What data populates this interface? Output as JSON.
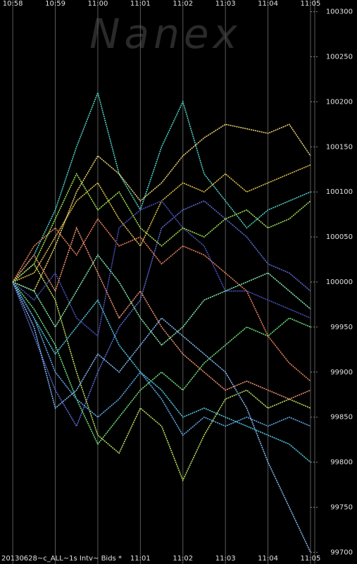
{
  "chart_data": {
    "type": "line",
    "watermark": "Nanex",
    "footer": "20130628~c_ALL~1s Intv~ Bids *",
    "x": [
      0,
      0.5,
      1,
      1.5,
      2,
      2.5,
      3,
      3.5,
      4,
      4.5,
      5,
      5.5,
      6,
      6.5,
      7
    ],
    "xlim": [
      -0.3,
      7.1
    ],
    "xticks": [
      {
        "value": 0,
        "label": "10:58"
      },
      {
        "value": 1,
        "label": "10:59"
      },
      {
        "value": 2,
        "label": "11:00"
      },
      {
        "value": 3,
        "label": "11:01"
      },
      {
        "value": 4,
        "label": "11:02"
      },
      {
        "value": 5,
        "label": "11:03"
      },
      {
        "value": 6,
        "label": "11:04"
      },
      {
        "value": 7,
        "label": "11:05"
      }
    ],
    "ylim": [
      99687,
      100313
    ],
    "yticks": [
      99700,
      99750,
      99800,
      99850,
      99900,
      99950,
      100000,
      100050,
      100100,
      100150,
      100200,
      100250,
      100300
    ],
    "grid": "x",
    "series": [
      {
        "color": "#4fd1c5",
        "values": [
          100000,
          100030,
          100080,
          100150,
          100210,
          100120,
          100080,
          100150,
          100200,
          100120,
          100090,
          100060,
          100080,
          100090,
          100100
        ]
      },
      {
        "color": "#e8d070",
        "values": [
          100000,
          99990,
          100040,
          100100,
          100140,
          100120,
          100090,
          100110,
          100140,
          100160,
          100175,
          100170,
          100165,
          100175,
          100140
        ]
      },
      {
        "color": "#e8805a",
        "values": [
          100000,
          100040,
          100060,
          100030,
          100070,
          100040,
          100050,
          100020,
          100040,
          100030,
          100010,
          99990,
          99940,
          99910,
          99890
        ]
      },
      {
        "color": "#5a6ad0",
        "values": [
          100000,
          99940,
          99880,
          99840,
          99900,
          99950,
          99980,
          100060,
          100080,
          100090,
          100070,
          100050,
          100020,
          100010,
          99990
        ]
      },
      {
        "color": "#6ee07a",
        "values": [
          100000,
          99970,
          99930,
          99870,
          99820,
          99850,
          99880,
          99900,
          99880,
          99910,
          99930,
          99950,
          99940,
          99960,
          99950
        ]
      },
      {
        "color": "#b8e060",
        "values": [
          100000,
          100020,
          99980,
          99900,
          99830,
          99810,
          99860,
          99840,
          99780,
          99830,
          99870,
          99880,
          99860,
          99870,
          99860
        ]
      },
      {
        "color": "#50c8e0",
        "values": [
          100000,
          99960,
          99920,
          99950,
          99980,
          99930,
          99900,
          99880,
          99850,
          99860,
          99850,
          99840,
          99830,
          99820,
          99800
        ]
      },
      {
        "color": "#e0c050",
        "values": [
          100000,
          100010,
          100050,
          100090,
          100110,
          100070,
          100040,
          100090,
          100110,
          100100,
          100120,
          100100,
          100110,
          100120,
          100130
        ]
      },
      {
        "color": "#4a50b8",
        "values": [
          100000,
          99980,
          100010,
          99960,
          99940,
          100060,
          100080,
          100090,
          100060,
          100040,
          99990,
          99990,
          99980,
          99970,
          99960
        ]
      },
      {
        "color": "#e89070",
        "values": [
          100000,
          100030,
          99990,
          100060,
          100010,
          99960,
          99990,
          99950,
          99920,
          99900,
          99880,
          99890,
          99880,
          99870,
          99880
        ]
      },
      {
        "color": "#80e8b0",
        "values": [
          100000,
          99990,
          99950,
          99990,
          100030,
          100000,
          99960,
          99930,
          99950,
          99980,
          99990,
          100000,
          100010,
          99990,
          99970
        ]
      },
      {
        "color": "#60a8e8",
        "values": [
          100000,
          99960,
          99900,
          99870,
          99850,
          99870,
          99900,
          99870,
          99830,
          99850,
          99840,
          99850,
          99840,
          99850,
          99840
        ]
      },
      {
        "color": "#a0e050",
        "values": [
          100000,
          100020,
          100070,
          100120,
          100080,
          100100,
          100060,
          100040,
          100060,
          100050,
          100070,
          100080,
          100060,
          100070,
          100090
        ]
      },
      {
        "color": "#80b8f0",
        "values": [
          100000,
          99950,
          99860,
          99880,
          99920,
          99900,
          99930,
          99960,
          99940,
          99920,
          99900,
          99860,
          99800,
          99750,
          99700
        ]
      }
    ]
  }
}
